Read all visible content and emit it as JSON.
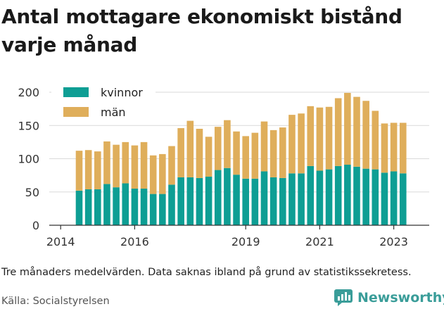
{
  "header": {
    "title": "Antal mottagare ekonomiskt bistånd varje månad"
  },
  "footer": {
    "note": "Tre månaders medelvärden. Data saknas ibland på grund av statistikssekretess.",
    "source": "Källa: Socialstyrelsen",
    "brand": "Newsworthy",
    "brand_icon": "newsworthy-logo-icon"
  },
  "colors": {
    "kvinnor": "#0e9e94",
    "man": "#dfae5b",
    "grid": "#d9d9d9",
    "axis": "#333333"
  },
  "chart_data": {
    "type": "bar",
    "stacked": true,
    "title": "Antal mottagare ekonomiskt bistånd varje månad",
    "xlabel": "",
    "ylabel": "",
    "ylim": [
      0,
      200
    ],
    "yticks": [
      0,
      50,
      100,
      150,
      200
    ],
    "xtick_labels": [
      "2014",
      "2016",
      "2019",
      "2021",
      "2023"
    ],
    "grid": true,
    "legend_position": "top-left",
    "x": [
      "2014-04",
      "2014-07",
      "2014-10",
      "2015-01",
      "2015-04",
      "2015-07",
      "2015-10",
      "2016-01",
      "2016-04",
      "2016-07",
      "2016-10",
      "2017-01",
      "2017-04",
      "2017-07",
      "2017-10",
      "2018-01",
      "2018-04",
      "2018-07",
      "2018-10",
      "2019-01",
      "2019-04",
      "2019-07",
      "2019-10",
      "2020-01",
      "2020-04",
      "2020-07",
      "2020-10",
      "2021-01",
      "2021-04",
      "2021-07",
      "2021-10",
      "2022-01",
      "2022-04",
      "2022-07",
      "2022-10",
      "2023-01"
    ],
    "series": [
      {
        "name": "kvinnor",
        "values": [
          52,
          54,
          54,
          62,
          57,
          63,
          55,
          55,
          47,
          47,
          61,
          72,
          72,
          71,
          73,
          83,
          86,
          76,
          70,
          70,
          81,
          72,
          71,
          78,
          78,
          89,
          82,
          84,
          89,
          91,
          88,
          85,
          84,
          79,
          81,
          78
        ]
      },
      {
        "name": "män",
        "values": [
          60,
          59,
          57,
          64,
          64,
          62,
          65,
          70,
          58,
          60,
          58,
          74,
          85,
          74,
          60,
          65,
          72,
          65,
          64,
          69,
          75,
          71,
          76,
          88,
          90,
          90,
          95,
          94,
          102,
          108,
          105,
          102,
          88,
          74,
          73,
          76
        ]
      }
    ]
  }
}
